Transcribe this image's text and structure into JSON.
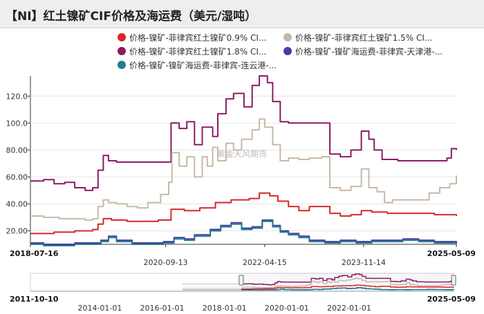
{
  "title": "【NI】红土镍矿CIF价格及海运费（美元/湿吨）",
  "watermark": "紫金天风期货",
  "legend": [
    {
      "label": "价格-镍矿-菲律宾红土镍矿0.9% CI...",
      "color": "#d62728"
    },
    {
      "label": "价格-镍矿-菲律宾红土镍矿1.5% CI...",
      "color": "#c8b8a6"
    },
    {
      "label": "价格-镍矿-菲律宾红土镍矿1.8% CI...",
      "color": "#8b1a62"
    },
    {
      "label": "价格-镍矿-镍矿海运费-菲律宾-天津港-...",
      "color": "#4b3aa8"
    },
    {
      "label": "价格-镍矿-镍矿海运费-菲律宾-连云港-...",
      "color": "#1f7f8c"
    }
  ],
  "navigator": {
    "start_label": "2011-10-10",
    "end_label": "2025-05-09",
    "ticks": [
      "2014-01-01",
      "2016-01-01",
      "2018-01-01",
      "2020-01-01",
      "2022-01-01"
    ]
  },
  "chart_data": {
    "type": "line",
    "x_range": [
      "2018-07-16",
      "2025-05-09"
    ],
    "x_tick_labels": [
      "2018-07-16",
      "2020-09-13",
      "2022-04-15",
      "2023-11-14",
      "2025-05-09"
    ],
    "ylim": [
      10,
      135
    ],
    "y_ticks": [
      "20.00",
      "40.00",
      "60.00",
      "80.00",
      "100.0",
      "120.0"
    ],
    "grid": true,
    "legend_position": "top",
    "series": [
      {
        "name": "价格-镍矿-菲律宾红土镍矿1.8% CI...",
        "color": "#8b1a62",
        "points": [
          [
            "2018-07-16",
            57
          ],
          [
            "2018-10-01",
            58
          ],
          [
            "2018-12-01",
            55
          ],
          [
            "2019-02-01",
            56
          ],
          [
            "2019-04-01",
            52
          ],
          [
            "2019-06-01",
            50
          ],
          [
            "2019-07-15",
            52
          ],
          [
            "2019-08-15",
            65
          ],
          [
            "2019-09-15",
            76
          ],
          [
            "2019-10-15",
            72
          ],
          [
            "2019-12-01",
            71
          ],
          [
            "2020-03-01",
            71
          ],
          [
            "2020-06-01",
            71
          ],
          [
            "2020-09-01",
            71
          ],
          [
            "2020-10-15",
            100
          ],
          [
            "2020-12-01",
            96
          ],
          [
            "2021-01-15",
            101
          ],
          [
            "2021-03-01",
            84
          ],
          [
            "2021-04-15",
            97
          ],
          [
            "2021-06-15",
            90
          ],
          [
            "2021-07-15",
            107
          ],
          [
            "2021-09-01",
            118
          ],
          [
            "2021-10-15",
            122
          ],
          [
            "2021-12-15",
            112
          ],
          [
            "2022-02-01",
            128
          ],
          [
            "2022-03-15",
            135
          ],
          [
            "2022-05-01",
            130
          ],
          [
            "2022-06-01",
            116
          ],
          [
            "2022-07-15",
            101
          ],
          [
            "2022-09-01",
            100
          ],
          [
            "2022-11-01",
            100
          ],
          [
            "2023-01-01",
            100
          ],
          [
            "2023-03-15",
            100
          ],
          [
            "2023-05-01",
            77
          ],
          [
            "2023-07-01",
            75
          ],
          [
            "2023-09-01",
            80
          ],
          [
            "2023-11-01",
            94
          ],
          [
            "2023-12-15",
            88
          ],
          [
            "2024-01-15",
            80
          ],
          [
            "2024-03-01",
            73
          ],
          [
            "2024-06-01",
            72
          ],
          [
            "2024-09-01",
            72
          ],
          [
            "2024-12-01",
            72
          ],
          [
            "2025-02-01",
            72
          ],
          [
            "2025-03-15",
            74
          ],
          [
            "2025-04-10",
            81
          ],
          [
            "2025-05-09",
            80
          ]
        ]
      },
      {
        "name": "价格-镍矿-菲律宾红土镍矿1.5% CI...",
        "color": "#c8b8a6",
        "points": [
          [
            "2018-07-16",
            31
          ],
          [
            "2018-10-01",
            30
          ],
          [
            "2019-01-01",
            29
          ],
          [
            "2019-04-01",
            29
          ],
          [
            "2019-06-01",
            28
          ],
          [
            "2019-07-15",
            29
          ],
          [
            "2019-08-15",
            38
          ],
          [
            "2019-09-15",
            43
          ],
          [
            "2019-10-15",
            41
          ],
          [
            "2019-12-01",
            40
          ],
          [
            "2020-02-01",
            38
          ],
          [
            "2020-04-01",
            37
          ],
          [
            "2020-06-01",
            41
          ],
          [
            "2020-08-15",
            47
          ],
          [
            "2020-10-01",
            56
          ],
          [
            "2020-10-20",
            78
          ],
          [
            "2020-12-01",
            68
          ],
          [
            "2021-01-15",
            75
          ],
          [
            "2021-03-01",
            60
          ],
          [
            "2021-04-15",
            75
          ],
          [
            "2021-05-15",
            68
          ],
          [
            "2021-06-15",
            82
          ],
          [
            "2021-07-15",
            72
          ],
          [
            "2021-09-01",
            85
          ],
          [
            "2021-10-15",
            80
          ],
          [
            "2021-12-01",
            88
          ],
          [
            "2022-02-01",
            95
          ],
          [
            "2022-03-15",
            103
          ],
          [
            "2022-04-15",
            97
          ],
          [
            "2022-06-01",
            84
          ],
          [
            "2022-07-15",
            72
          ],
          [
            "2022-09-01",
            74
          ],
          [
            "2022-11-01",
            73
          ],
          [
            "2023-01-01",
            74
          ],
          [
            "2023-03-15",
            75
          ],
          [
            "2023-05-01",
            52
          ],
          [
            "2023-07-01",
            50
          ],
          [
            "2023-09-01",
            53
          ],
          [
            "2023-11-01",
            66
          ],
          [
            "2023-12-15",
            52
          ],
          [
            "2024-02-01",
            49
          ],
          [
            "2024-03-15",
            41
          ],
          [
            "2024-05-01",
            43
          ],
          [
            "2024-07-01",
            43
          ],
          [
            "2024-10-01",
            43
          ],
          [
            "2024-12-01",
            48
          ],
          [
            "2025-02-01",
            52
          ],
          [
            "2025-04-01",
            55
          ],
          [
            "2025-05-09",
            61
          ]
        ]
      },
      {
        "name": "价格-镍矿-菲律宾红土镍矿0.9% CI...",
        "color": "#d62728",
        "points": [
          [
            "2018-07-16",
            18
          ],
          [
            "2018-12-01",
            19
          ],
          [
            "2019-04-01",
            20
          ],
          [
            "2019-07-15",
            21
          ],
          [
            "2019-08-15",
            25
          ],
          [
            "2019-09-15",
            29
          ],
          [
            "2019-11-01",
            28
          ],
          [
            "2020-02-01",
            27
          ],
          [
            "2020-05-01",
            27
          ],
          [
            "2020-08-01",
            28
          ],
          [
            "2020-10-15",
            36
          ],
          [
            "2021-01-01",
            35
          ],
          [
            "2021-04-01",
            37
          ],
          [
            "2021-07-01",
            41
          ],
          [
            "2021-10-01",
            43
          ],
          [
            "2022-01-15",
            44
          ],
          [
            "2022-03-15",
            48
          ],
          [
            "2022-05-15",
            46
          ],
          [
            "2022-07-01",
            42
          ],
          [
            "2022-09-01",
            38
          ],
          [
            "2022-11-01",
            35
          ],
          [
            "2023-01-01",
            38
          ],
          [
            "2023-03-15",
            38
          ],
          [
            "2023-05-01",
            33
          ],
          [
            "2023-07-01",
            31
          ],
          [
            "2023-09-01",
            32
          ],
          [
            "2023-11-01",
            35
          ],
          [
            "2024-01-01",
            34
          ],
          [
            "2024-04-01",
            33
          ],
          [
            "2024-07-01",
            33
          ],
          [
            "2024-10-01",
            33
          ],
          [
            "2025-01-01",
            32
          ],
          [
            "2025-05-09",
            31
          ]
        ]
      },
      {
        "name": "价格-镍矿-镍矿海运费-菲律宾-天津港-...",
        "color": "#4b3aa8",
        "points": [
          [
            "2018-07-16",
            11
          ],
          [
            "2018-10-01",
            10
          ],
          [
            "2019-01-01",
            10
          ],
          [
            "2019-04-01",
            11
          ],
          [
            "2019-07-01",
            11
          ],
          [
            "2019-09-01",
            13
          ],
          [
            "2019-10-15",
            16
          ],
          [
            "2019-12-01",
            13
          ],
          [
            "2020-03-01",
            11
          ],
          [
            "2020-06-01",
            11
          ],
          [
            "2020-09-01",
            12
          ],
          [
            "2020-11-01",
            15
          ],
          [
            "2021-01-01",
            14
          ],
          [
            "2021-03-01",
            17
          ],
          [
            "2021-06-01",
            21
          ],
          [
            "2021-08-01",
            24
          ],
          [
            "2021-10-01",
            26
          ],
          [
            "2021-12-01",
            22
          ],
          [
            "2022-02-01",
            23
          ],
          [
            "2022-04-01",
            28
          ],
          [
            "2022-06-01",
            24
          ],
          [
            "2022-07-15",
            20
          ],
          [
            "2022-09-01",
            18
          ],
          [
            "2022-11-01",
            16
          ],
          [
            "2023-01-01",
            13
          ],
          [
            "2023-04-01",
            12
          ],
          [
            "2023-07-01",
            13
          ],
          [
            "2023-10-01",
            12
          ],
          [
            "2024-01-01",
            13
          ],
          [
            "2024-04-01",
            13
          ],
          [
            "2024-07-01",
            14
          ],
          [
            "2024-10-01",
            13
          ],
          [
            "2025-01-01",
            12
          ],
          [
            "2025-05-09",
            11
          ]
        ]
      },
      {
        "name": "价格-镍矿-镍矿海运费-菲律宾-连云港-...",
        "color": "#1f7f8c",
        "points": [
          [
            "2018-07-16",
            10
          ],
          [
            "2018-10-01",
            9
          ],
          [
            "2019-01-01",
            9
          ],
          [
            "2019-04-01",
            10
          ],
          [
            "2019-07-01",
            10
          ],
          [
            "2019-09-01",
            12
          ],
          [
            "2019-10-15",
            15
          ],
          [
            "2019-12-01",
            12
          ],
          [
            "2020-03-01",
            10
          ],
          [
            "2020-06-01",
            10
          ],
          [
            "2020-09-01",
            11
          ],
          [
            "2020-11-01",
            14
          ],
          [
            "2021-01-01",
            13
          ],
          [
            "2021-03-01",
            16
          ],
          [
            "2021-06-01",
            20
          ],
          [
            "2021-08-01",
            23
          ],
          [
            "2021-10-01",
            25
          ],
          [
            "2021-12-01",
            21
          ],
          [
            "2022-02-01",
            22
          ],
          [
            "2022-04-01",
            27
          ],
          [
            "2022-06-01",
            23
          ],
          [
            "2022-07-15",
            19
          ],
          [
            "2022-09-01",
            17
          ],
          [
            "2022-11-01",
            15
          ],
          [
            "2023-01-01",
            12
          ],
          [
            "2023-04-01",
            11
          ],
          [
            "2023-07-01",
            12
          ],
          [
            "2023-10-01",
            11
          ],
          [
            "2024-01-01",
            12
          ],
          [
            "2024-04-01",
            12
          ],
          [
            "2024-07-01",
            13
          ],
          [
            "2024-10-01",
            12
          ],
          [
            "2025-01-01",
            11
          ],
          [
            "2025-05-09",
            10
          ]
        ]
      }
    ]
  }
}
